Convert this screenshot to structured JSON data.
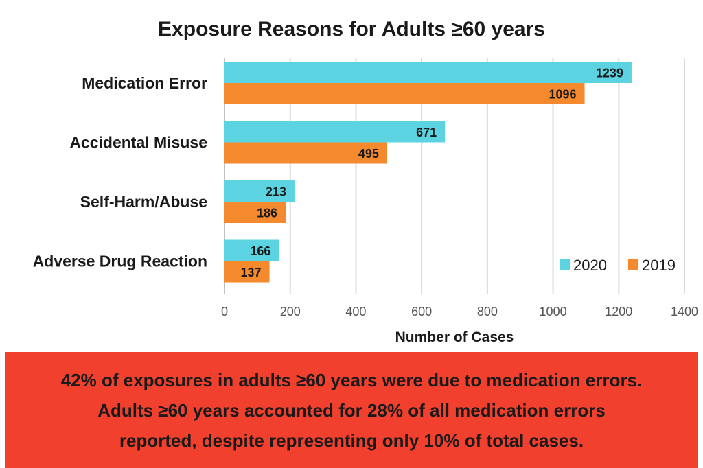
{
  "chart_data": {
    "type": "bar",
    "orientation": "horizontal",
    "title": "Exposure Reasons for Adults ≥60 years",
    "xlabel": "Number of Cases",
    "ylabel": "",
    "categories": [
      "Medication Error",
      "Accidental Misuse",
      "Self-Harm/Abuse",
      "Adverse Drug Reaction"
    ],
    "series": [
      {
        "name": "2020",
        "values": [
          1239,
          671,
          213,
          166
        ],
        "color": "#5bd3e0"
      },
      {
        "name": "2019",
        "values": [
          1096,
          495,
          186,
          137
        ],
        "color": "#f5892e"
      }
    ],
    "xlim": [
      0,
      1400
    ],
    "xticks": [
      0,
      200,
      400,
      600,
      800,
      1000,
      1200,
      1400
    ],
    "grid": true,
    "legend": "bottom-right",
    "data_labels": true
  },
  "banner": {
    "lines": [
      "42% of exposures in adults ≥60 years were due to medication errors.",
      "Adults ≥60 years accounted for 28% of all medication errors",
      "reported, despite representing only 10% of total cases."
    ],
    "background": "#f2402f"
  }
}
